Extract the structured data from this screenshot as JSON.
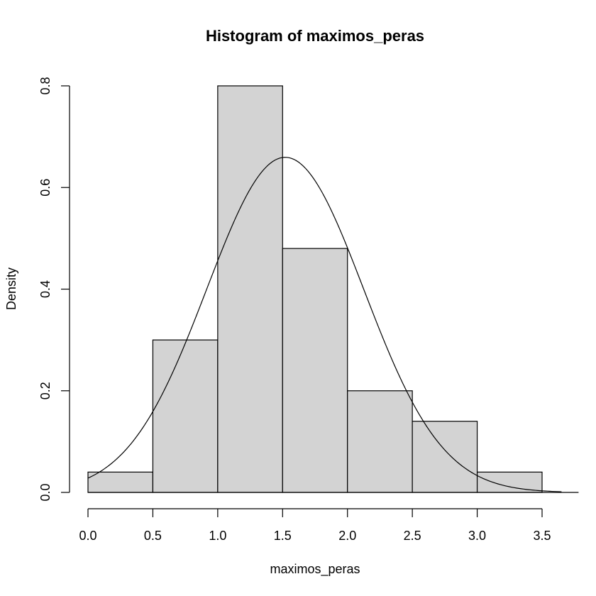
{
  "chart_data": {
    "type": "bar",
    "subtype": "histogram",
    "title": "Histogram of maximos_peras",
    "xlabel": "maximos_peras",
    "ylabel": "Density",
    "bins": [
      {
        "start": 0.0,
        "end": 0.5,
        "density": 0.04
      },
      {
        "start": 0.5,
        "end": 1.0,
        "density": 0.3
      },
      {
        "start": 1.0,
        "end": 1.5,
        "density": 0.8
      },
      {
        "start": 1.5,
        "end": 2.0,
        "density": 0.48
      },
      {
        "start": 2.0,
        "end": 2.5,
        "density": 0.2
      },
      {
        "start": 2.5,
        "end": 3.0,
        "density": 0.14
      },
      {
        "start": 3.0,
        "end": 3.5,
        "density": 0.04
      }
    ],
    "x_ticks": [
      "0.0",
      "0.5",
      "1.0",
      "1.5",
      "2.0",
      "2.5",
      "3.0",
      "3.5"
    ],
    "y_ticks": [
      "0.0",
      "0.2",
      "0.4",
      "0.6",
      "0.8"
    ],
    "xlim": [
      0.0,
      3.5
    ],
    "ylim": [
      0.0,
      0.8
    ],
    "density_curve": {
      "type": "normal",
      "mean": 1.52,
      "sd": 0.605,
      "x_range": [
        0.0,
        3.65
      ]
    },
    "bar_fill": "#d3d3d3",
    "line_color": "#000000",
    "grid": false,
    "legend": false
  }
}
